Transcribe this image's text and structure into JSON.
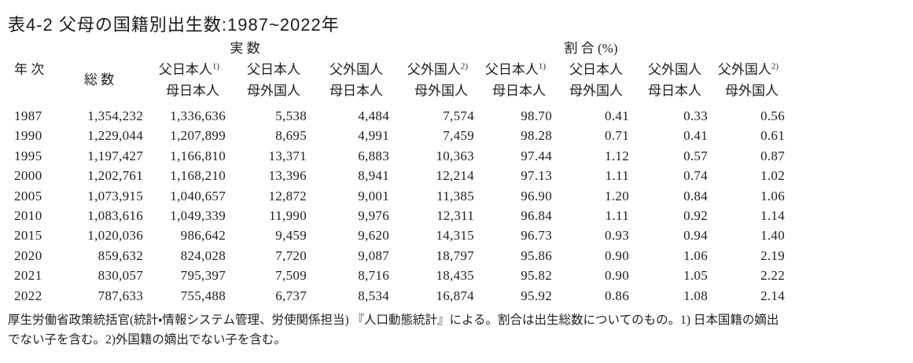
{
  "page": {
    "background": "#ffffff",
    "text_color": "#1f1f1f"
  },
  "title": "表4-2 父母の国籍別出生数:1987~2022年",
  "table": {
    "group_headers": [
      {
        "label": "実 数"
      },
      {
        "label": "割 合 (%)"
      }
    ],
    "columns": [
      {
        "l1": "年 次",
        "sup": "",
        "l2": ""
      },
      {
        "l1": "総 数",
        "sup": "",
        "l2": ""
      },
      {
        "l1": "父日本人",
        "sup": "1)",
        "l2": "母日本人"
      },
      {
        "l1": "父日本人",
        "sup": "",
        "l2": "母外国人"
      },
      {
        "l1": "父外国人",
        "sup": "",
        "l2": "母日本人"
      },
      {
        "l1": "父外国人",
        "sup": "2)",
        "l2": "母外国人"
      },
      {
        "l1": "父日本人",
        "sup": "1)",
        "l2": "母日本人"
      },
      {
        "l1": "父日本人",
        "sup": "",
        "l2": "母外国人"
      },
      {
        "l1": "父外国人",
        "sup": "",
        "l2": "母日本人"
      },
      {
        "l1": "父外国人",
        "sup": "2)",
        "l2": "母外国人"
      }
    ],
    "rows": [
      [
        "1987",
        "1,354,232",
        "1,336,636",
        "5,538",
        "4,484",
        "7,574",
        "98.70",
        "0.41",
        "0.33",
        "0.56"
      ],
      [
        "1990",
        "1,229,044",
        "1,207,899",
        "8,695",
        "4,991",
        "7,459",
        "98.28",
        "0.71",
        "0.41",
        "0.61"
      ],
      [
        "1995",
        "1,197,427",
        "1,166,810",
        "13,371",
        "6,883",
        "10,363",
        "97.44",
        "1.12",
        "0.57",
        "0.87"
      ],
      [
        "2000",
        "1,202,761",
        "1,168,210",
        "13,396",
        "8,941",
        "12,214",
        "97.13",
        "1.11",
        "0.74",
        "1.02"
      ],
      [
        "2005",
        "1,073,915",
        "1,040,657",
        "12,872",
        "9,001",
        "11,385",
        "96.90",
        "1.20",
        "0.84",
        "1.06"
      ],
      [
        "2010",
        "1,083,616",
        "1,049,339",
        "11,990",
        "9,976",
        "12,311",
        "96.84",
        "1.11",
        "0.92",
        "1.14"
      ],
      [
        "2015",
        "1,020,036",
        "986,642",
        "9,459",
        "9,620",
        "14,315",
        "96.73",
        "0.93",
        "0.94",
        "1.40"
      ],
      [
        "2020",
        "859,632",
        "824,028",
        "7,720",
        "9,087",
        "18,797",
        "95.86",
        "0.90",
        "1.06",
        "2.19"
      ],
      [
        "2021",
        "830,057",
        "795,397",
        "7,509",
        "8,716",
        "18,435",
        "95.82",
        "0.90",
        "1.05",
        "2.22"
      ],
      [
        "2022",
        "787,633",
        "755,488",
        "6,737",
        "8,534",
        "16,874",
        "95.92",
        "0.86",
        "1.08",
        "2.14"
      ]
    ]
  },
  "footnotes": [
    "厚生労働省政策統括官(統計・情報システム管理、労使関係担当) 『人口動態統計』による。割合は出生総数についてのもの。1) 日本国籍の嫡出",
    "でない子を含む。2)外国籍の嫡出でない子を含む。"
  ]
}
